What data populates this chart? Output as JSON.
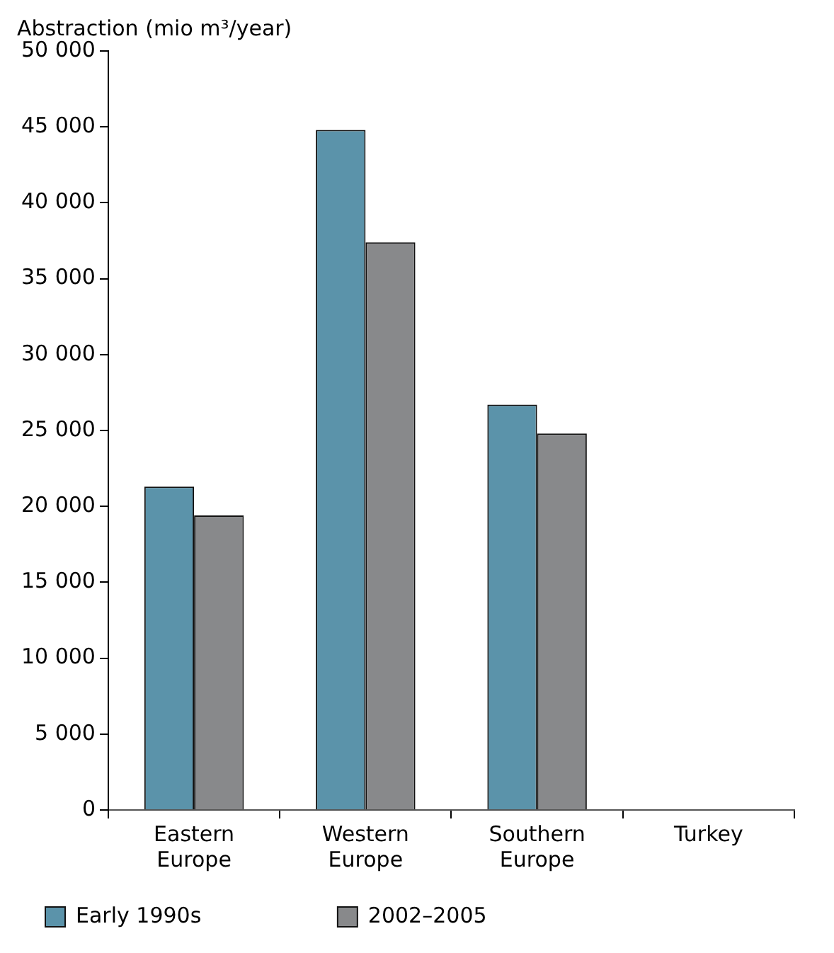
{
  "chart_data": {
    "type": "bar",
    "ylabel": "Abstraction (mio m³/year)",
    "categories": [
      "Eastern Europe",
      "Western Europe",
      "Southern Europe",
      "Turkey"
    ],
    "series": [
      {
        "name": "Early 1990s",
        "color": "#5b93aa",
        "values": [
          21300,
          44800,
          26700,
          0
        ]
      },
      {
        "name": "2002–2005",
        "color": "#88898b",
        "values": [
          19400,
          37400,
          24800,
          0
        ]
      }
    ],
    "ylim": [
      0,
      50000
    ],
    "yticks": [
      0,
      5000,
      10000,
      15000,
      20000,
      25000,
      30000,
      35000,
      40000,
      45000,
      50000
    ],
    "grid": false,
    "legend": "bottom"
  }
}
